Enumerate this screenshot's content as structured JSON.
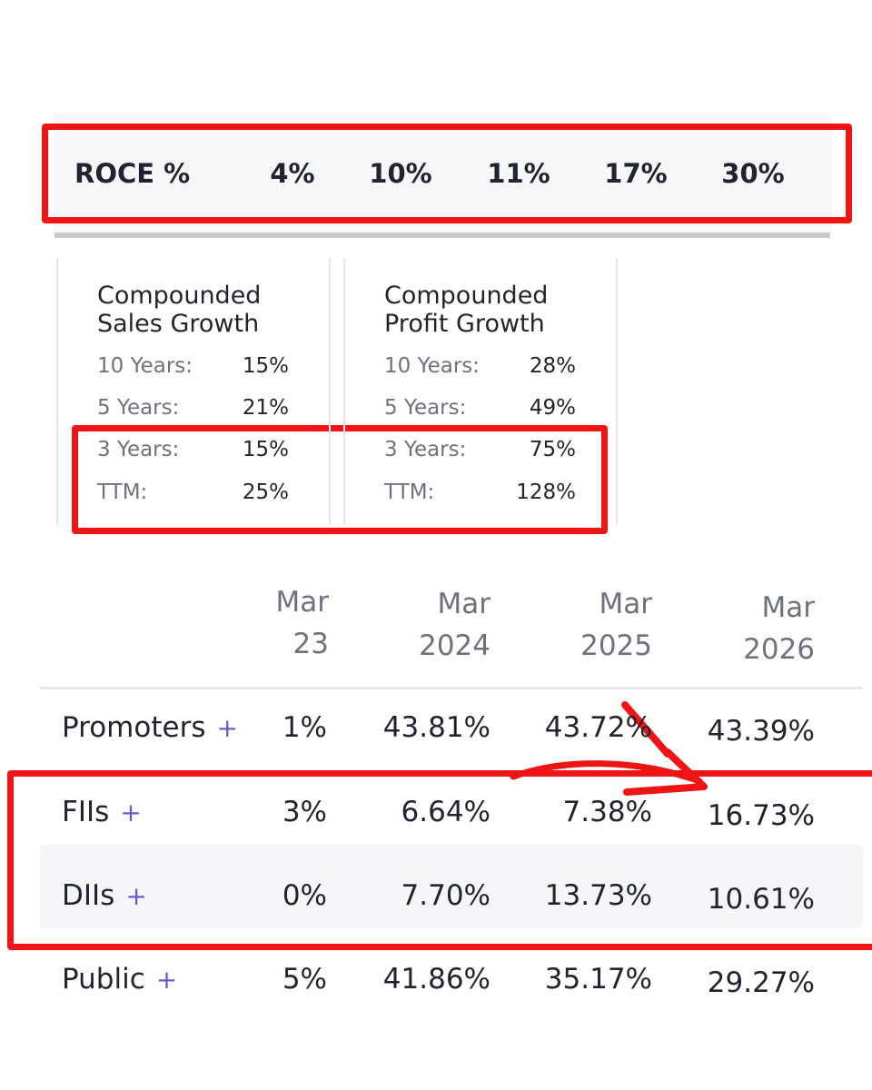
{
  "roce": {
    "label": "ROCE %",
    "values": [
      "4%",
      "10%",
      "11%",
      "17%",
      "30%"
    ]
  },
  "growth_cards": [
    {
      "title_lines": [
        "Compounded",
        "Sales Growth"
      ],
      "rows": [
        {
          "label": "10 Years:",
          "value": "15%"
        },
        {
          "label": "5 Years:",
          "value": "21%"
        },
        {
          "label": "3 Years:",
          "value": "15%"
        },
        {
          "label": "TTM:",
          "value": "25%"
        }
      ]
    },
    {
      "title_lines": [
        "Compounded",
        "Profit Growth"
      ],
      "rows": [
        {
          "label": "10 Years:",
          "value": "28%"
        },
        {
          "label": "5 Years:",
          "value": "49%"
        },
        {
          "label": "3 Years:",
          "value": "75%"
        },
        {
          "label": "TTM:",
          "value": "128%"
        }
      ]
    }
  ],
  "shareholding": {
    "headers": [
      [
        "Mar",
        "23"
      ],
      [
        "Mar",
        "2024"
      ],
      [
        "Mar",
        "2025"
      ],
      [
        "Mar",
        "2026"
      ]
    ],
    "rows": [
      {
        "label": "Promoters",
        "plus": "+",
        "values": [
          "1%",
          "43.81%",
          "43.72%",
          "43.39%"
        ]
      },
      {
        "label": "FIIs",
        "plus": "+",
        "values": [
          "3%",
          "6.64%",
          "7.38%",
          "16.73%"
        ]
      },
      {
        "label": "DIIs",
        "plus": "+",
        "values": [
          "0%",
          "7.70%",
          "13.73%",
          "10.61%"
        ]
      },
      {
        "label": "Public",
        "plus": "+",
        "values": [
          "5%",
          "41.86%",
          "35.17%",
          "29.27%"
        ]
      }
    ]
  }
}
